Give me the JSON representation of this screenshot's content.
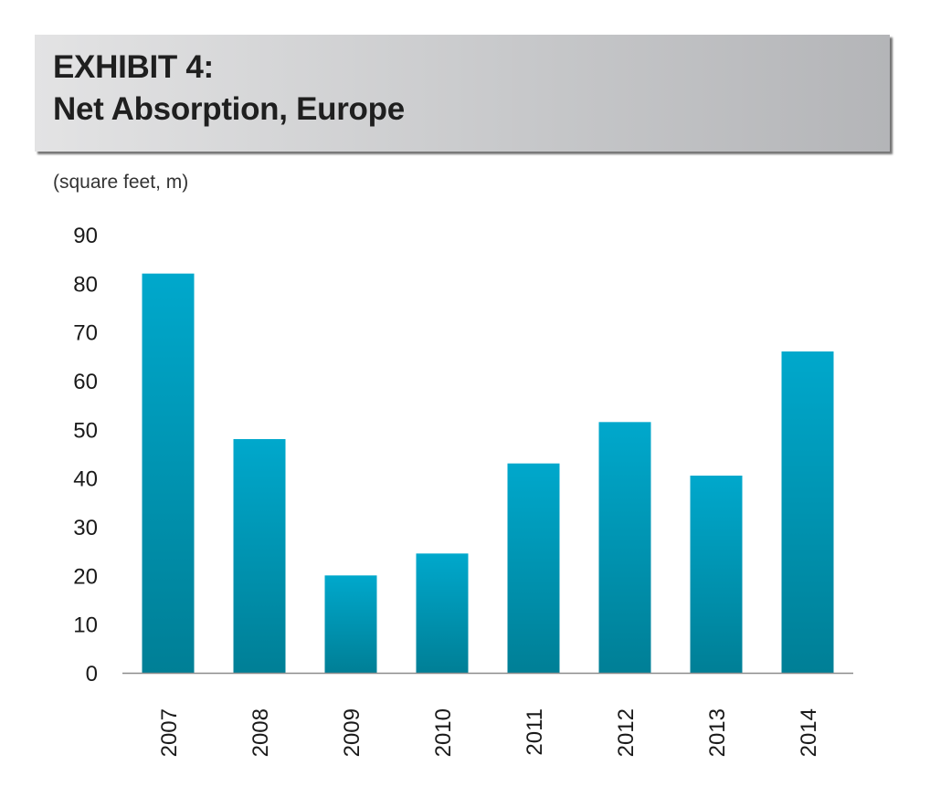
{
  "header": {
    "line1": "EXHIBIT 4:",
    "line2": "Net Absorption, Europe"
  },
  "colors": {
    "bar_top": "#00a8cc",
    "bar_bottom": "#007f96",
    "axis": "#8c8c8c"
  },
  "chart_data": {
    "type": "bar",
    "title": "Net Absorption, Europe",
    "ylabel": "(square feet, m)",
    "xlabel": "",
    "categories": [
      "2007",
      "2008",
      "2009",
      "2010",
      "2011",
      "2012",
      "2013",
      "2014"
    ],
    "values": [
      82,
      48,
      20,
      24.5,
      43,
      51.5,
      40.5,
      66
    ],
    "ylim": [
      0,
      90
    ],
    "yticks": [
      "0",
      "10",
      "20",
      "30",
      "40",
      "50",
      "60",
      "70",
      "80",
      "90"
    ],
    "grid": false,
    "legend": "none"
  }
}
